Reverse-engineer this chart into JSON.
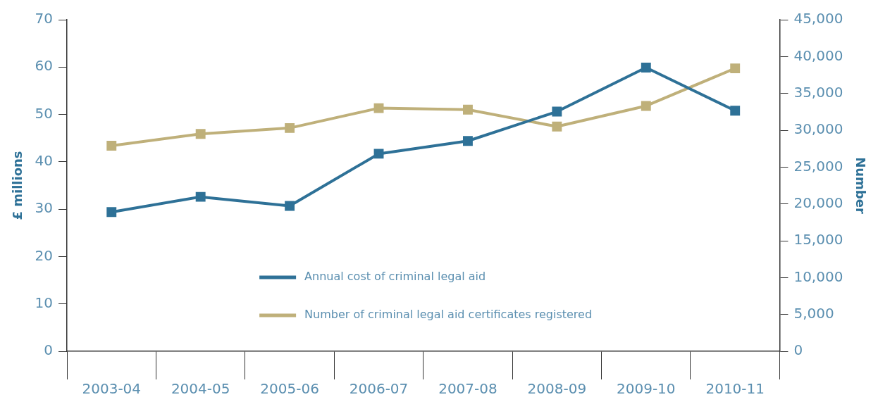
{
  "chart_data": {
    "type": "line",
    "categories": [
      "2003-04",
      "2004-05",
      "2005-06",
      "2006-07",
      "2007-08",
      "2008-09",
      "2009-10",
      "2010-11"
    ],
    "ylabel": "£ millions",
    "y2label": "Number",
    "series": [
      {
        "name": "Annual cost of criminal legal aid",
        "color": "#2e7197",
        "values": [
          29.4,
          32.6,
          30.7,
          41.7,
          44.4,
          50.6,
          59.9,
          50.8
        ]
      },
      {
        "name": "Number of criminal legal aid certificates registered",
        "color": "#bfb07a",
        "axis": "y2",
        "values": [
          27900,
          29500,
          30300,
          33000,
          32800,
          30500,
          33300,
          38400
        ]
      }
    ],
    "ylim": [
      0,
      70
    ],
    "yticks": [
      0,
      10,
      20,
      30,
      40,
      50,
      60,
      70
    ],
    "y2lim": [
      0,
      45000
    ],
    "y2ticks": [
      0,
      {
        "value": 5000,
        "label": "5,000"
      },
      {
        "value": 10000,
        "label": "10,000"
      },
      {
        "value": 15000,
        "label": "15,000"
      },
      {
        "value": 20000,
        "label": "20,000"
      },
      {
        "value": 25000,
        "label": "25,000"
      },
      {
        "value": 30000,
        "label": "30,000"
      },
      {
        "value": 35000,
        "label": "35,000"
      },
      {
        "value": 40000,
        "label": "40,000"
      },
      {
        "value": 45000,
        "label": "45,000"
      }
    ],
    "grid": false,
    "legend": "bottom",
    "marker": "square",
    "line_style": "solid"
  }
}
